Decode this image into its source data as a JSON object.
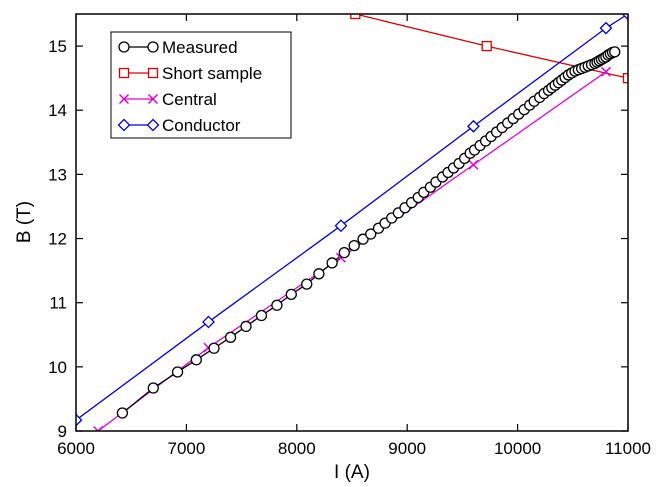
{
  "chart_data": {
    "type": "line",
    "title": "",
    "xlabel": "I (A)",
    "ylabel": "B (T)",
    "xlim": [
      6000,
      11000
    ],
    "ylim": [
      9,
      15.5
    ],
    "x_ticks": [
      6000,
      7000,
      8000,
      9000,
      10000,
      11000
    ],
    "y_ticks": [
      9,
      10,
      11,
      12,
      13,
      14,
      15
    ],
    "x_tick_labels": [
      "6000",
      "7000",
      "8000",
      "9000",
      "10000",
      "11000"
    ],
    "y_tick_labels": [
      "9",
      "10",
      "11",
      "12",
      "13",
      "14",
      "15"
    ],
    "grid": false,
    "legend_position": "top-left",
    "series": [
      {
        "name": "Measured",
        "color": "#000000",
        "marker": "circle",
        "x": [
          6420,
          6700,
          6920,
          7090,
          7250,
          7400,
          7540,
          7680,
          7820,
          7950,
          8090,
          8200,
          8320,
          8430,
          8520,
          8600,
          8670,
          8740,
          8800,
          8860,
          8920,
          8980,
          9040,
          9100,
          9150,
          9210,
          9260,
          9320,
          9370,
          9420,
          9470,
          9520,
          9570,
          9610,
          9660,
          9710,
          9760,
          9810,
          9860,
          9910,
          9960,
          10010,
          10060,
          10110,
          10150,
          10200,
          10240,
          10280,
          10310,
          10340,
          10370,
          10400,
          10430,
          10460,
          10490,
          10520,
          10550,
          10580,
          10610,
          10640,
          10670,
          10700,
          10720,
          10740,
          10760,
          10780,
          10800,
          10820,
          10840,
          10860,
          10880
        ],
        "y": [
          9.28,
          9.67,
          9.92,
          10.11,
          10.29,
          10.46,
          10.63,
          10.8,
          10.96,
          11.13,
          11.29,
          11.45,
          11.62,
          11.78,
          11.89,
          11.99,
          12.07,
          12.16,
          12.24,
          12.32,
          12.4,
          12.48,
          12.56,
          12.64,
          12.72,
          12.8,
          12.88,
          12.96,
          13.03,
          13.1,
          13.17,
          13.25,
          13.33,
          13.38,
          13.45,
          13.52,
          13.59,
          13.66,
          13.73,
          13.8,
          13.87,
          13.94,
          14.01,
          14.08,
          14.14,
          14.2,
          14.26,
          14.31,
          14.35,
          14.39,
          14.43,
          14.47,
          14.51,
          14.55,
          14.58,
          14.61,
          14.63,
          14.65,
          14.67,
          14.69,
          14.71,
          14.73,
          14.75,
          14.77,
          14.79,
          14.81,
          14.83,
          14.86,
          14.88,
          14.9,
          14.91
        ]
      },
      {
        "name": "Short sample",
        "color": "#e00000",
        "marker": "square",
        "x": [
          8530,
          9720,
          11000
        ],
        "y": [
          15.5,
          15.0,
          14.5
        ]
      },
      {
        "name": "Central",
        "color": "#e000e0",
        "marker": "x",
        "x": [
          6200,
          7200,
          8400,
          9600,
          10800
        ],
        "y": [
          9.0,
          10.3,
          11.7,
          13.15,
          14.6
        ]
      },
      {
        "name": "Conductor",
        "color": "#0000dd",
        "marker": "diamond",
        "x": [
          6000,
          7200,
          8400,
          9600,
          10800,
          11000
        ],
        "y": [
          9.17,
          10.7,
          12.2,
          13.75,
          15.28,
          15.5
        ]
      }
    ]
  }
}
